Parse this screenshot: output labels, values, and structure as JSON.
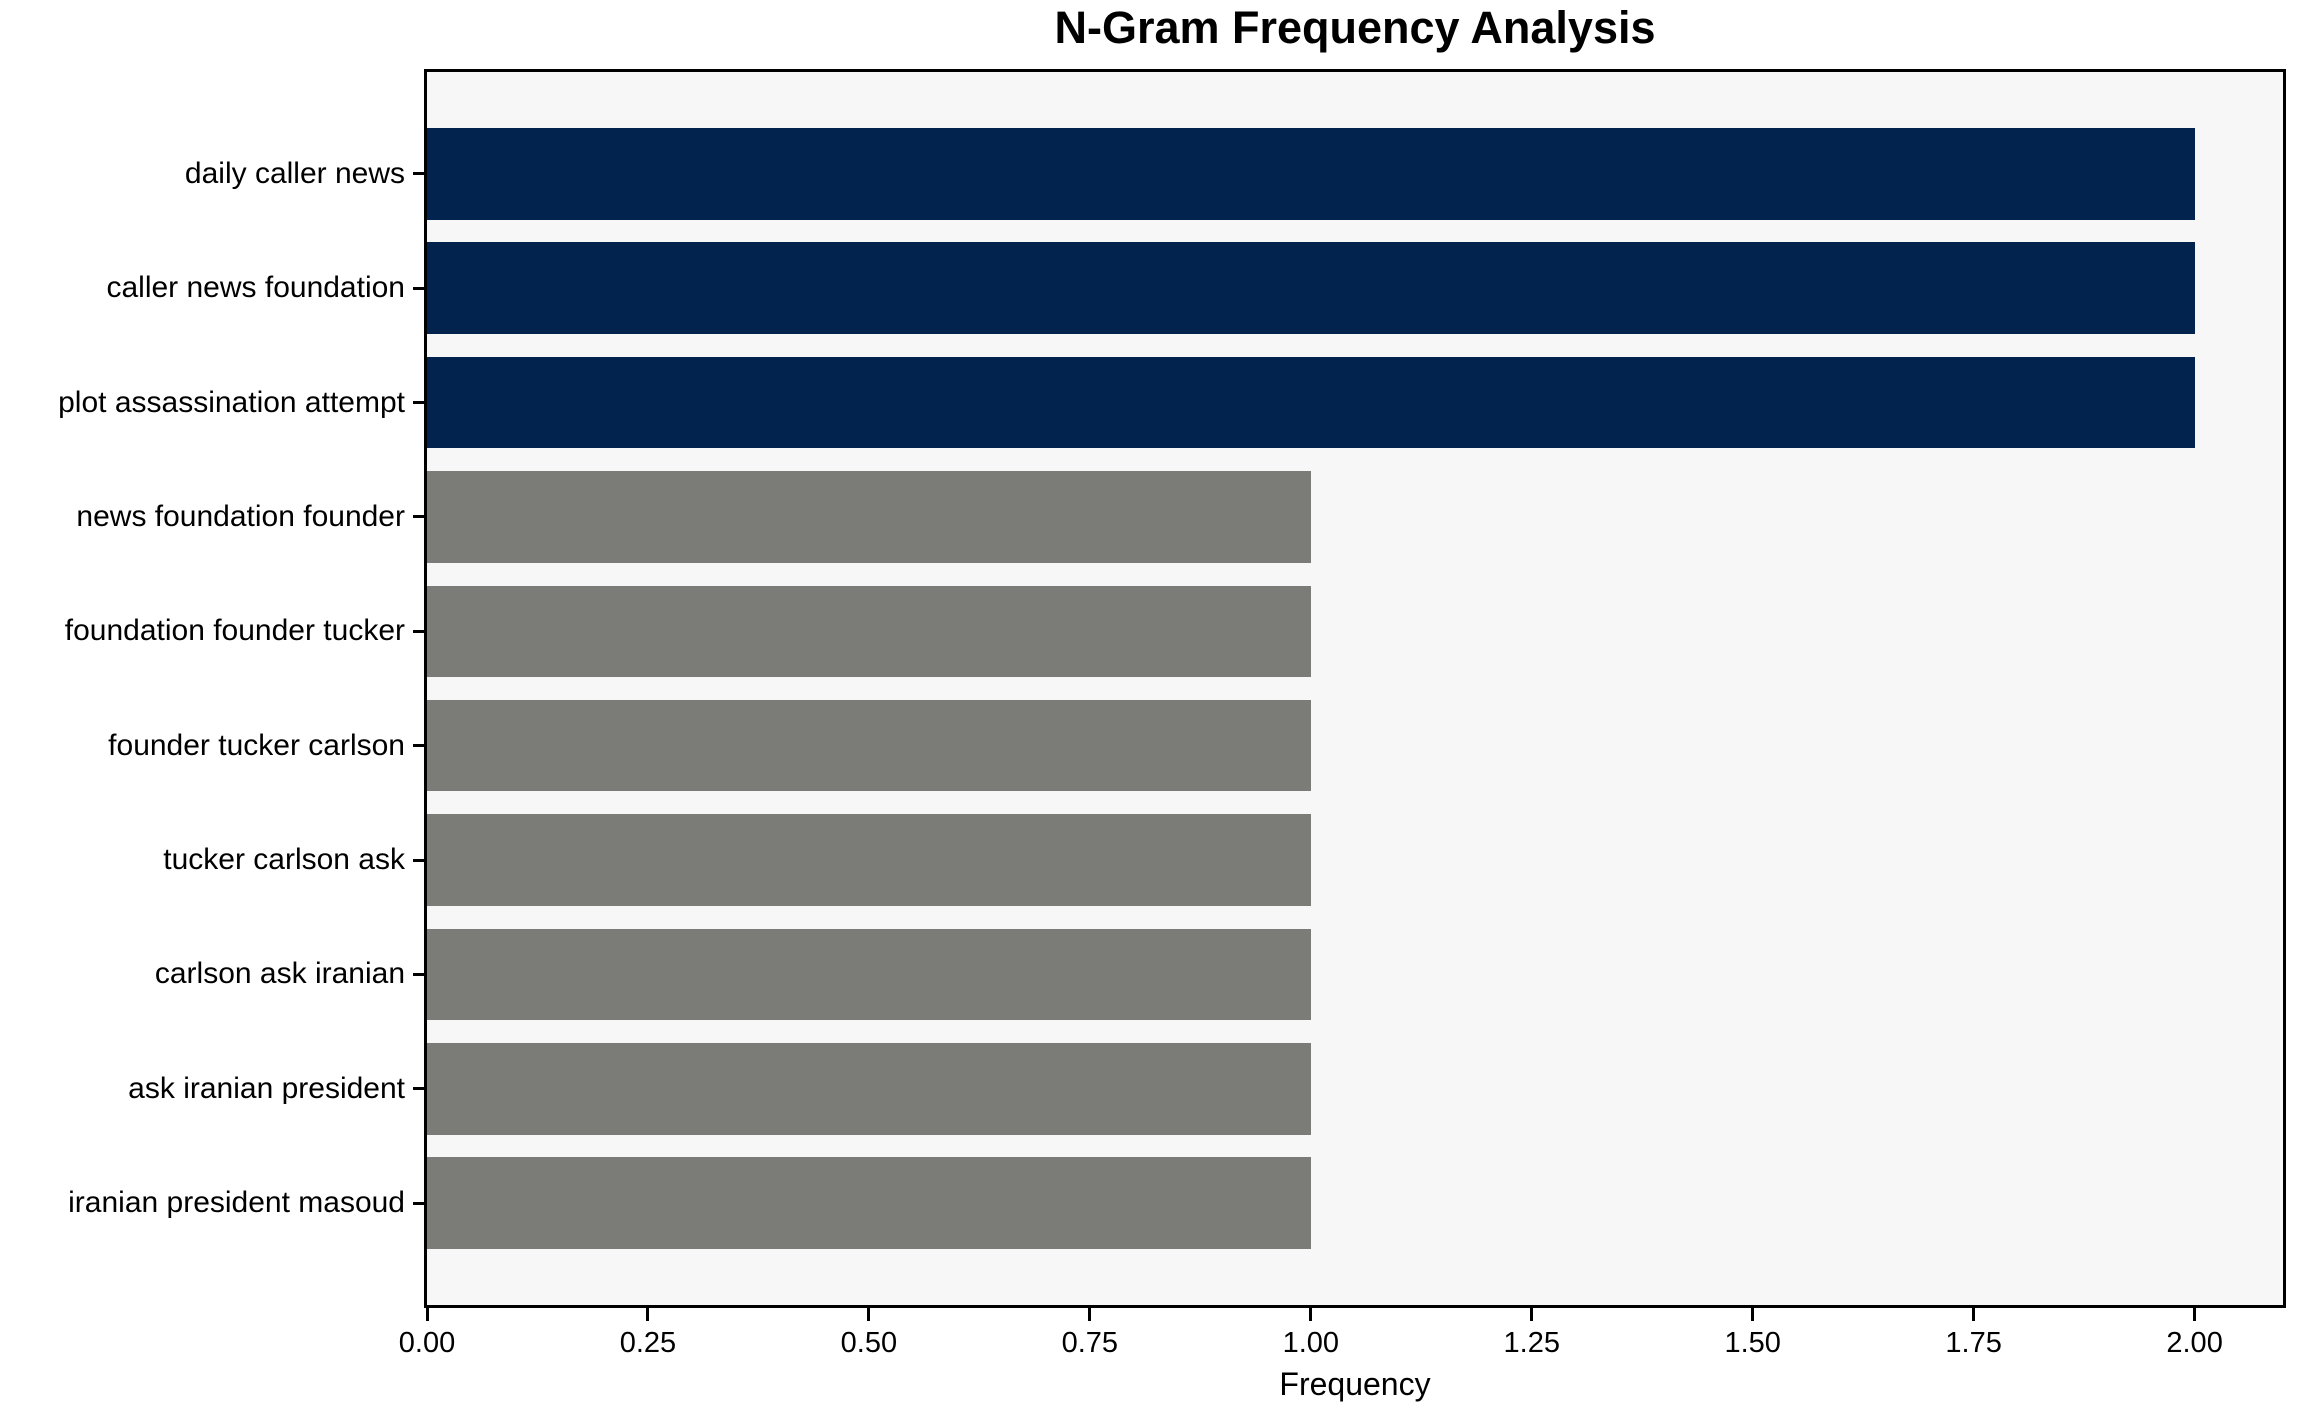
{
  "title": "N-Gram Frequency Analysis",
  "chart_data": {
    "type": "bar",
    "orientation": "horizontal",
    "title": "N-Gram Frequency Analysis",
    "xlabel": "Frequency",
    "ylabel": "",
    "categories": [
      "daily caller news",
      "caller news foundation",
      "plot assassination attempt",
      "news foundation founder",
      "foundation founder tucker",
      "founder tucker carlson",
      "tucker carlson ask",
      "carlson ask iranian",
      "ask iranian president",
      "iranian president masoud"
    ],
    "values": [
      2,
      2,
      2,
      1,
      1,
      1,
      1,
      1,
      1,
      1
    ],
    "bar_colors": [
      "#02234d",
      "#02234d",
      "#02234d",
      "#7b7b78",
      "#7b7b78",
      "#7b7b78",
      "#7b7b78",
      "#7b7b78",
      "#7b7b78",
      "#7b7b78"
    ],
    "xlim": [
      0,
      2.1
    ],
    "xticks": [
      0,
      0.25,
      0.5,
      0.75,
      1,
      1.25,
      1.5,
      1.75,
      2
    ],
    "xtick_labels": [
      "0.00",
      "0.25",
      "0.50",
      "0.75",
      "1.00",
      "1.25",
      "1.50",
      "1.75",
      "2.00"
    ],
    "grid": false,
    "legend": null,
    "colors": {
      "highlight_bar": "#02234d",
      "default_bar": "#7b7b78",
      "plot_background": "#f7f7f7",
      "figure_background": "#ffffff",
      "spine": "#000000",
      "text": "#000000"
    }
  }
}
